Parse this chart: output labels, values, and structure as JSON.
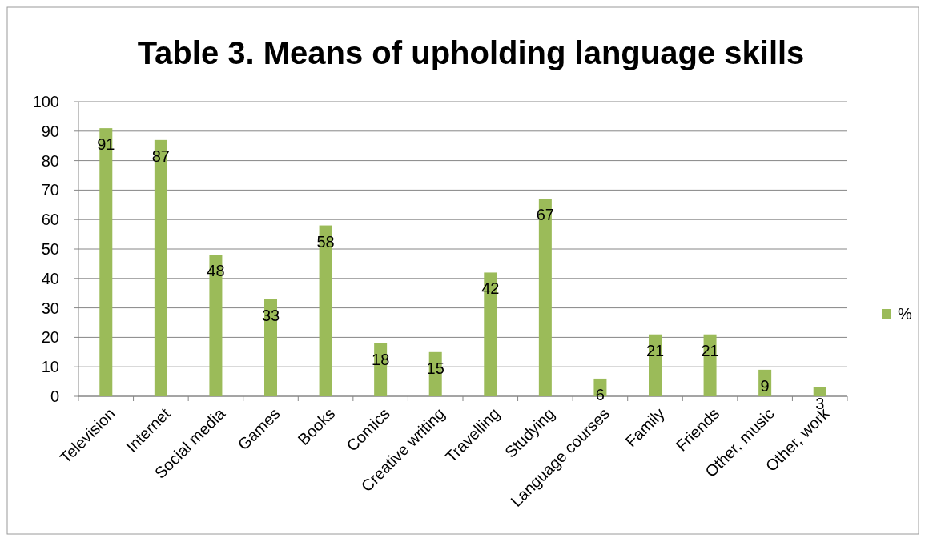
{
  "chart_data": {
    "type": "bar",
    "title": "Table 3. Means of upholding language skills",
    "categories": [
      "Television",
      "Internet",
      "Social media",
      "Games",
      "Books",
      "Comics",
      "Creative writing",
      "Travelling",
      "Studying",
      "Language courses",
      "Family",
      "Friends",
      "Other, music",
      "Other, work"
    ],
    "series": [
      {
        "name": "%",
        "color": "#9bbb59",
        "values": [
          91,
          87,
          48,
          33,
          58,
          18,
          15,
          42,
          67,
          6,
          21,
          21,
          9,
          3
        ]
      }
    ],
    "ylim": [
      0,
      100
    ],
    "yticks": [
      0,
      10,
      20,
      30,
      40,
      50,
      60,
      70,
      80,
      90,
      100
    ],
    "grid": "y",
    "legend": "right",
    "data_labels": true
  }
}
